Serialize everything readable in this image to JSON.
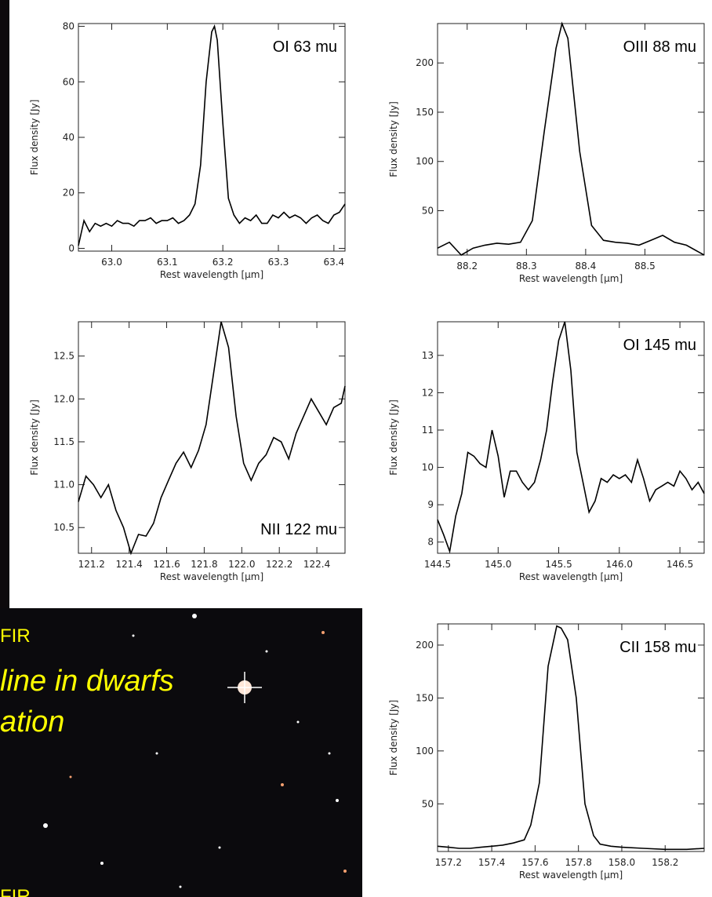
{
  "chart_data": [
    {
      "type": "line",
      "annotation": "OI 63 mu",
      "xlabel": "Rest wavelength [μm]",
      "ylabel": "Flux density [Jy]",
      "x": [
        62.94,
        62.95,
        62.96,
        62.97,
        62.98,
        62.99,
        63.0,
        63.01,
        63.02,
        63.03,
        63.04,
        63.05,
        63.06,
        63.07,
        63.08,
        63.09,
        63.1,
        63.11,
        63.12,
        63.13,
        63.14,
        63.15,
        63.16,
        63.17,
        63.18,
        63.185,
        63.19,
        63.2,
        63.21,
        63.22,
        63.23,
        63.24,
        63.25,
        63.26,
        63.27,
        63.28,
        63.29,
        63.3,
        63.31,
        63.32,
        63.33,
        63.34,
        63.35,
        63.36,
        63.37,
        63.38,
        63.39,
        63.4,
        63.41,
        63.42
      ],
      "values": [
        1,
        10,
        6,
        9,
        8,
        9,
        8,
        10,
        9,
        9,
        8,
        10,
        10,
        11,
        9,
        10,
        10,
        11,
        9,
        10,
        12,
        16,
        30,
        60,
        78,
        80,
        75,
        45,
        18,
        12,
        9,
        11,
        10,
        12,
        9,
        9,
        12,
        11,
        13,
        11,
        12,
        11,
        9,
        11,
        12,
        10,
        9,
        12,
        13,
        16
      ],
      "color": "#000000",
      "xlim": [
        62.94,
        63.42
      ],
      "ylim": [
        -1,
        81
      ],
      "xticks": [
        {
          "value": 63.0,
          "label": "63.0"
        },
        63.1,
        63.2,
        63.3,
        63.4
      ],
      "yticks": [
        0,
        20,
        40,
        60,
        80
      ]
    },
    {
      "type": "line",
      "annotation": "OIII 88 mu",
      "xlabel": "Rest wavelength [μm]",
      "ylabel": "Flux density [Jy]",
      "x": [
        88.15,
        88.17,
        88.19,
        88.21,
        88.23,
        88.25,
        88.27,
        88.29,
        88.31,
        88.33,
        88.35,
        88.36,
        88.37,
        88.39,
        88.41,
        88.43,
        88.45,
        88.47,
        88.49,
        88.51,
        88.53,
        88.55,
        88.57,
        88.6
      ],
      "values": [
        12,
        18,
        5,
        12,
        15,
        17,
        16,
        18,
        40,
        130,
        215,
        240,
        225,
        110,
        35,
        20,
        18,
        17,
        15,
        20,
        25,
        18,
        15,
        5
      ],
      "color": "#000000",
      "xlim": [
        88.15,
        88.6
      ],
      "ylim": [
        5,
        240
      ],
      "xticks": [
        88.2,
        88.3,
        88.4,
        88.5
      ],
      "yticks": [
        50,
        100,
        150,
        200
      ]
    },
    {
      "type": "line",
      "annotation": "NII 122 mu",
      "xlabel": "Rest wavelength [μm]",
      "ylabel": "Flux density [Jy]",
      "x": [
        121.13,
        121.17,
        121.21,
        121.25,
        121.29,
        121.33,
        121.37,
        121.41,
        121.45,
        121.49,
        121.53,
        121.57,
        121.61,
        121.65,
        121.69,
        121.73,
        121.77,
        121.81,
        121.85,
        121.89,
        121.93,
        121.97,
        122.01,
        122.05,
        122.09,
        122.13,
        122.17,
        122.21,
        122.25,
        122.29,
        122.33,
        122.37,
        122.41,
        122.45,
        122.49,
        122.53,
        122.55
      ],
      "values": [
        10.8,
        11.1,
        11.0,
        10.85,
        11.0,
        10.7,
        10.5,
        10.2,
        10.42,
        10.4,
        10.55,
        10.85,
        11.05,
        11.25,
        11.38,
        11.2,
        11.4,
        11.7,
        12.3,
        12.9,
        12.6,
        11.8,
        11.25,
        11.05,
        11.25,
        11.35,
        11.55,
        11.5,
        11.3,
        11.6,
        11.8,
        12.0,
        11.85,
        11.7,
        11.9,
        11.95,
        12.15
      ],
      "color": "#000000",
      "xlim": [
        121.13,
        122.55
      ],
      "ylim": [
        10.2,
        12.9
      ],
      "xticks": [
        121.2,
        121.4,
        121.6,
        121.8,
        {
          "value": 122.0,
          "label": "122.0"
        },
        122.2,
        122.4
      ],
      "yticks": [
        10.5,
        {
          "value": 11.0,
          "label": "11.0"
        },
        11.5,
        {
          "value": 12.0,
          "label": "12.0"
        },
        12.5
      ]
    },
    {
      "type": "line",
      "annotation": "OI 145 mu",
      "xlabel": "Rest wavelength [μm]",
      "ylabel": "Flux density [Jy]",
      "x": [
        144.5,
        144.55,
        144.6,
        144.65,
        144.7,
        144.75,
        144.8,
        144.85,
        144.9,
        144.95,
        145.0,
        145.05,
        145.1,
        145.15,
        145.2,
        145.25,
        145.3,
        145.35,
        145.4,
        145.45,
        145.5,
        145.55,
        145.6,
        145.65,
        145.7,
        145.75,
        145.8,
        145.85,
        145.9,
        145.95,
        146.0,
        146.05,
        146.1,
        146.15,
        146.2,
        146.25,
        146.3,
        146.35,
        146.4,
        146.45,
        146.5,
        146.55,
        146.6,
        146.65,
        146.7
      ],
      "values": [
        8.6,
        8.2,
        7.75,
        8.7,
        9.3,
        10.4,
        10.3,
        10.1,
        10.0,
        11.0,
        10.3,
        9.2,
        9.9,
        9.9,
        9.6,
        9.4,
        9.6,
        10.2,
        11.0,
        12.3,
        13.4,
        13.9,
        12.6,
        10.4,
        9.6,
        8.8,
        9.1,
        9.7,
        9.6,
        9.8,
        9.7,
        9.8,
        9.6,
        10.2,
        9.7,
        9.1,
        9.4,
        9.5,
        9.6,
        9.5,
        9.9,
        9.7,
        9.4,
        9.6,
        9.3
      ],
      "color": "#000000",
      "xlim": [
        144.5,
        146.7
      ],
      "ylim": [
        7.7,
        13.9
      ],
      "xticks": [
        144.5,
        {
          "value": 145.0,
          "label": "145.0"
        },
        145.5,
        {
          "value": 146.0,
          "label": "146.0"
        },
        146.5
      ],
      "yticks": [
        8,
        9,
        10,
        11,
        12,
        13
      ]
    },
    {
      "type": "line",
      "annotation": "CII 158 mu",
      "xlabel": "Rest wavelength [μm]",
      "ylabel": "Flux density [Jy]",
      "x": [
        157.15,
        157.2,
        157.25,
        157.3,
        157.35,
        157.4,
        157.45,
        157.5,
        157.55,
        157.58,
        157.62,
        157.66,
        157.7,
        157.72,
        157.75,
        157.79,
        157.83,
        157.87,
        157.9,
        157.95,
        158.0,
        158.1,
        158.2,
        158.3,
        158.38
      ],
      "values": [
        10,
        9,
        8,
        8,
        9,
        10,
        11,
        13,
        16,
        30,
        70,
        180,
        218,
        216,
        205,
        150,
        50,
        20,
        12,
        10,
        9,
        8,
        7,
        7,
        8
      ],
      "color": "#000000",
      "xlim": [
        157.15,
        158.38
      ],
      "ylim": [
        5,
        220
      ],
      "xticks": [
        157.2,
        157.4,
        157.6,
        157.8,
        {
          "value": 158.0,
          "label": "158.0"
        },
        158.2
      ],
      "yticks": [
        50,
        100,
        150,
        200
      ]
    }
  ],
  "slide_text": [
    "FIR",
    "line in dwarfs",
    "ation",
    "FIR"
  ]
}
